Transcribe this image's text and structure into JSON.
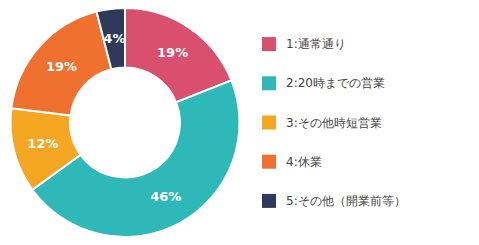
{
  "chart_data": {
    "type": "donut",
    "categories": [
      "1:通常通り",
      "2:20時までの営業",
      "3:その他時短営業",
      "4:休業",
      "5:その他（開業前等）"
    ],
    "values": [
      19,
      46,
      12,
      19,
      4
    ],
    "value_labels": [
      "19%",
      "46%",
      "12%",
      "19%",
      "4%"
    ],
    "colors": [
      "#d94f6e",
      "#2eb8b8",
      "#f5a623",
      "#f07030",
      "#2e3a59"
    ],
    "data_labels": true,
    "legend": "right"
  }
}
